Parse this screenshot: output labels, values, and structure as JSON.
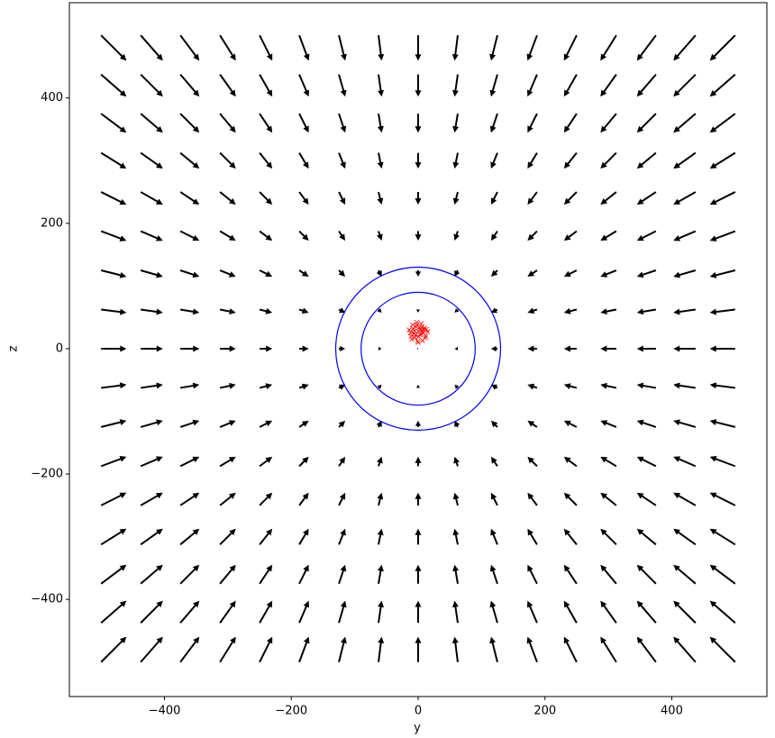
{
  "chart_data": {
    "type": "quiver",
    "x_label": "y",
    "y_label": "z",
    "xlim": [
      -550,
      550
    ],
    "ylim": [
      -555,
      552
    ],
    "xticks": [
      {
        "value": -400,
        "label": "−400"
      },
      {
        "value": -200,
        "label": "−200"
      },
      0,
      200,
      400
    ],
    "yticks": [
      {
        "value": -400,
        "label": "−400"
      },
      {
        "value": -200,
        "label": "−200"
      },
      0,
      200,
      400
    ],
    "arrow_color": "#000000",
    "x": [
      -500,
      -437.5,
      -375,
      -312.5,
      -250,
      -187.5,
      -125,
      -62.5,
      0,
      62.5,
      125,
      187.5,
      250,
      312.5,
      375,
      437.5,
      500
    ],
    "y": [
      500,
      437.5,
      375,
      312.5,
      250,
      187.5,
      125,
      62.5,
      0,
      -62.5,
      -125,
      -187.5,
      -250,
      -312.5,
      -375,
      -437.5,
      -500
    ],
    "u": [
      40,
      35,
      30,
      25,
      20,
      15,
      10,
      5,
      0,
      -5,
      -10,
      -15,
      -20,
      -25,
      -30,
      -35,
      -40
    ],
    "v": [
      -40,
      -35,
      -30,
      -25,
      -20,
      -15,
      -10,
      -5,
      0,
      5,
      10,
      15,
      20,
      25,
      30,
      35,
      40
    ],
    "circles": {
      "color": "#0000ff",
      "center": [
        0,
        0
      ],
      "radii": [
        130,
        90
      ]
    },
    "scatter": {
      "color": "#ff0000",
      "x": [
        -12,
        -8,
        -5,
        -2,
        0,
        3,
        6,
        9,
        12,
        15,
        -14,
        -10,
        -6,
        -1,
        2,
        5,
        8,
        11,
        -9,
        -4,
        1,
        4,
        7,
        10,
        -7,
        -3,
        0,
        4,
        13,
        -11,
        6,
        -2
      ],
      "y": [
        25,
        32,
        18,
        38,
        28,
        22,
        35,
        30,
        20,
        27,
        30,
        15,
        28,
        12,
        34,
        40,
        25,
        17,
        38,
        22,
        19,
        30,
        13,
        33,
        24,
        35,
        10,
        24,
        31,
        20,
        29,
        42
      ]
    }
  }
}
